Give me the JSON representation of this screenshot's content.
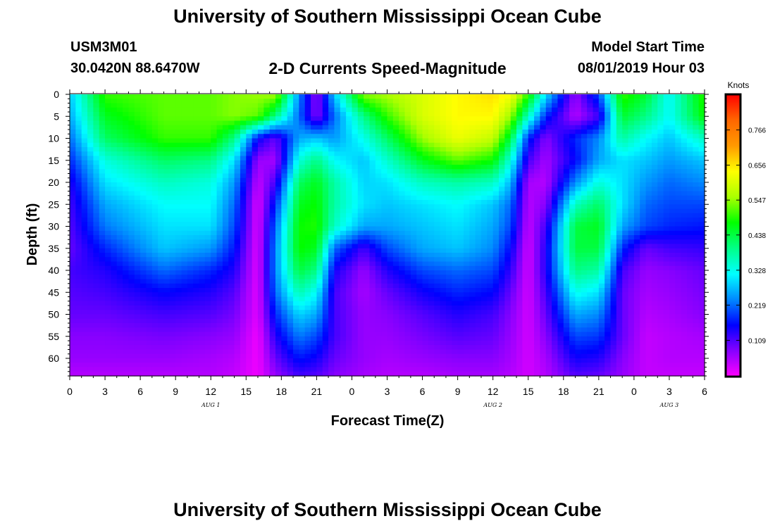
{
  "header": {
    "title_top": "University of Southern Mississippi Ocean Cube",
    "station_id": "USM3M01",
    "station_coords": "30.0420N 88.6470W",
    "plot_title": "2-D Currents Speed-Magnitude",
    "model_start_label": "Model Start Time",
    "model_start_value": "08/01/2019 Hour 03",
    "title_bottom": "University of Southern Mississippi Ocean Cube"
  },
  "chart_data": {
    "type": "heatmap",
    "xlabel": "Forecast Time(Z)",
    "ylabel": "Depth (ft)",
    "x_tick_labels": [
      "0",
      "3",
      "6",
      "9",
      "12",
      "15",
      "18",
      "21",
      "0",
      "3",
      "6",
      "9",
      "12",
      "15",
      "18",
      "21",
      "0",
      "3",
      "6"
    ],
    "x_range_hours": [
      0,
      54
    ],
    "day_labels": [
      {
        "text": "AUG 1",
        "hour": 12
      },
      {
        "text": "AUG 2",
        "hour": 36
      },
      {
        "text": "AUG 3",
        "hour": 51
      }
    ],
    "y_tick_labels": [
      "0",
      "5",
      "10",
      "15",
      "20",
      "25",
      "30",
      "35",
      "40",
      "45",
      "50",
      "55",
      "60"
    ],
    "y_range_ft": [
      0,
      64
    ],
    "y_reversed": true,
    "colorbar": {
      "unit_label": "Knots",
      "tick_labels": [
        "0.766",
        "0.656",
        "0.547",
        "0.438",
        "0.328",
        "0.219",
        "0.109"
      ],
      "range": [
        0,
        0.875
      ]
    },
    "colormap": [
      "#ff00ff",
      "#8800ff",
      "#0000ff",
      "#0088ff",
      "#00ffff",
      "#00ff88",
      "#00ff00",
      "#aaff00",
      "#ffff00",
      "#ff9900",
      "#ff6600",
      "#ff0000"
    ],
    "time_nodes_hours": [
      0,
      3,
      8,
      12,
      14,
      16,
      17.5,
      19.5,
      21,
      22.5,
      25,
      27,
      30,
      33,
      36,
      37.5,
      39,
      40.5,
      43,
      45,
      47,
      49,
      51,
      54
    ],
    "depth_nodes_ft": [
      0,
      5,
      10,
      15,
      20,
      25,
      30,
      35,
      40,
      45,
      50,
      55,
      60,
      64
    ],
    "speed_knots": [
      [
        0.28,
        0.5,
        0.52,
        0.52,
        0.54,
        0.55,
        0.56,
        0.24,
        0.07,
        0.28,
        0.54,
        0.56,
        0.6,
        0.64,
        0.66,
        0.63,
        0.5,
        0.3,
        0.07,
        0.2,
        0.5,
        0.45,
        0.32,
        0.5
      ],
      [
        0.26,
        0.46,
        0.52,
        0.52,
        0.54,
        0.52,
        0.4,
        0.22,
        0.08,
        0.22,
        0.4,
        0.5,
        0.6,
        0.64,
        0.64,
        0.55,
        0.36,
        0.18,
        0.05,
        0.12,
        0.45,
        0.4,
        0.32,
        0.48
      ],
      [
        0.22,
        0.42,
        0.5,
        0.5,
        0.4,
        0.16,
        0.1,
        0.26,
        0.28,
        0.25,
        0.33,
        0.42,
        0.55,
        0.62,
        0.58,
        0.44,
        0.18,
        0.08,
        0.18,
        0.24,
        0.38,
        0.32,
        0.28,
        0.36
      ],
      [
        0.18,
        0.34,
        0.42,
        0.4,
        0.3,
        0.07,
        0.06,
        0.34,
        0.4,
        0.32,
        0.28,
        0.35,
        0.46,
        0.52,
        0.48,
        0.34,
        0.12,
        0.06,
        0.16,
        0.26,
        0.3,
        0.28,
        0.25,
        0.28
      ],
      [
        0.14,
        0.3,
        0.36,
        0.34,
        0.25,
        0.04,
        0.12,
        0.42,
        0.46,
        0.38,
        0.29,
        0.3,
        0.36,
        0.38,
        0.36,
        0.27,
        0.06,
        0.05,
        0.24,
        0.34,
        0.3,
        0.25,
        0.22,
        0.24
      ],
      [
        0.12,
        0.26,
        0.32,
        0.32,
        0.22,
        0.02,
        0.18,
        0.46,
        0.48,
        0.38,
        0.3,
        0.28,
        0.3,
        0.32,
        0.28,
        0.22,
        0.05,
        0.08,
        0.36,
        0.42,
        0.3,
        0.22,
        0.2,
        0.2
      ],
      [
        0.11,
        0.23,
        0.3,
        0.3,
        0.2,
        0.02,
        0.22,
        0.48,
        0.49,
        0.36,
        0.26,
        0.26,
        0.28,
        0.3,
        0.26,
        0.2,
        0.04,
        0.12,
        0.44,
        0.46,
        0.26,
        0.2,
        0.18,
        0.17
      ],
      [
        0.1,
        0.18,
        0.28,
        0.25,
        0.17,
        0.02,
        0.24,
        0.48,
        0.46,
        0.22,
        0.12,
        0.2,
        0.26,
        0.28,
        0.24,
        0.16,
        0.03,
        0.14,
        0.44,
        0.44,
        0.18,
        0.1,
        0.12,
        0.13
      ],
      [
        0.12,
        0.14,
        0.22,
        0.18,
        0.14,
        0.02,
        0.24,
        0.44,
        0.4,
        0.15,
        0.07,
        0.14,
        0.2,
        0.22,
        0.2,
        0.13,
        0.03,
        0.14,
        0.4,
        0.38,
        0.12,
        0.07,
        0.08,
        0.1
      ],
      [
        0.11,
        0.12,
        0.16,
        0.14,
        0.11,
        0.02,
        0.22,
        0.37,
        0.32,
        0.12,
        0.06,
        0.1,
        0.15,
        0.18,
        0.16,
        0.1,
        0.03,
        0.12,
        0.33,
        0.3,
        0.1,
        0.06,
        0.07,
        0.09
      ],
      [
        0.1,
        0.1,
        0.12,
        0.11,
        0.09,
        0.02,
        0.18,
        0.29,
        0.26,
        0.12,
        0.07,
        0.08,
        0.11,
        0.14,
        0.12,
        0.08,
        0.03,
        0.1,
        0.26,
        0.24,
        0.1,
        0.05,
        0.06,
        0.08
      ],
      [
        0.08,
        0.08,
        0.09,
        0.08,
        0.07,
        0.01,
        0.14,
        0.23,
        0.2,
        0.12,
        0.07,
        0.07,
        0.09,
        0.11,
        0.1,
        0.07,
        0.03,
        0.08,
        0.2,
        0.19,
        0.1,
        0.04,
        0.05,
        0.06
      ],
      [
        0.07,
        0.07,
        0.07,
        0.06,
        0.05,
        0.01,
        0.1,
        0.17,
        0.15,
        0.1,
        0.07,
        0.06,
        0.07,
        0.08,
        0.08,
        0.06,
        0.03,
        0.06,
        0.15,
        0.14,
        0.08,
        0.04,
        0.05,
        0.05
      ],
      [
        0.05,
        0.05,
        0.05,
        0.05,
        0.04,
        0.01,
        0.07,
        0.12,
        0.11,
        0.08,
        0.06,
        0.05,
        0.05,
        0.06,
        0.06,
        0.05,
        0.03,
        0.05,
        0.11,
        0.1,
        0.07,
        0.04,
        0.04,
        0.04
      ]
    ]
  }
}
